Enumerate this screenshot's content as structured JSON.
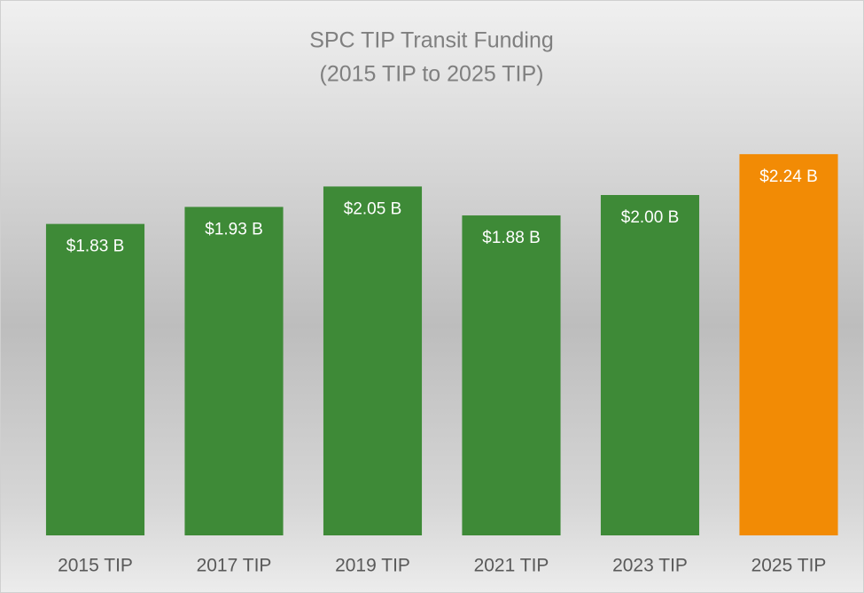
{
  "chart_data": {
    "type": "bar",
    "title": "SPC TIP Transit Funding",
    "subtitle": "(2015 TIP to 2025 TIP)",
    "categories": [
      "2015 TIP",
      "2017 TIP",
      "2019 TIP",
      "2021 TIP",
      "2023 TIP",
      "2025 TIP"
    ],
    "values": [
      1.83,
      1.93,
      2.05,
      1.88,
      2.0,
      2.24
    ],
    "value_labels": [
      "$1.83 B",
      "$1.93 B",
      "$2.05 B",
      "$1.88 B",
      "$2.00 B",
      "$2.24 B"
    ],
    "colors": [
      "#3e8a37",
      "#3e8a37",
      "#3e8a37",
      "#3e8a37",
      "#3e8a37",
      "#f28b05"
    ],
    "ylim": [
      0,
      2.5
    ]
  }
}
